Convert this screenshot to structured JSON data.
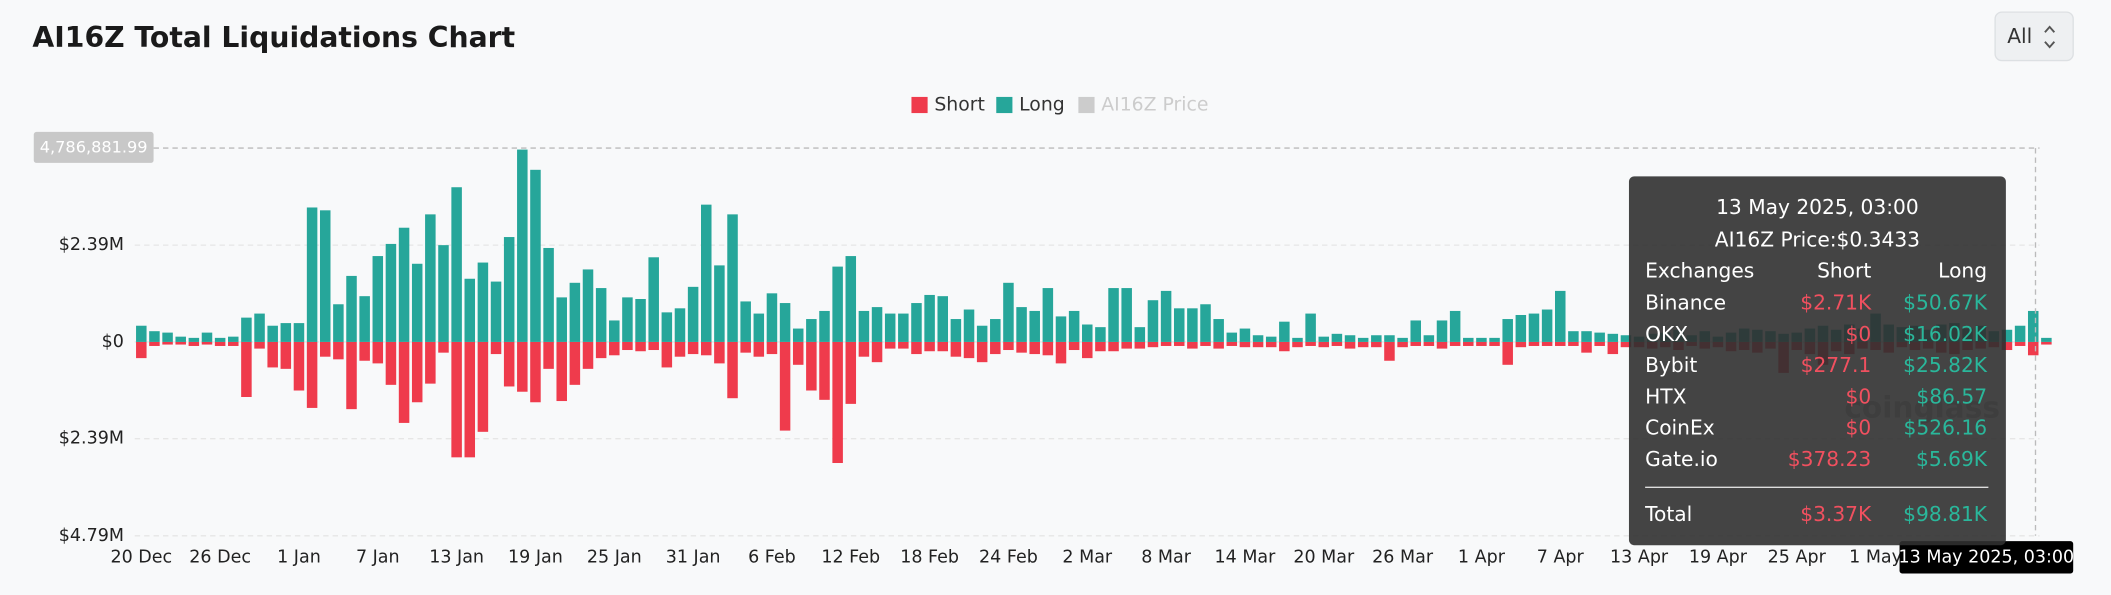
{
  "chart_data": {
    "type": "bar",
    "title": "AI16Z Total Liquidations Chart",
    "selector": "All",
    "watermark": "coinglass",
    "categories": [
      "20 Dec",
      null,
      null,
      null,
      null,
      null,
      "26 Dec",
      null,
      null,
      null,
      null,
      null,
      "1 Jan",
      null,
      null,
      null,
      null,
      null,
      "7 Jan",
      null,
      null,
      null,
      null,
      null,
      "13 Jan",
      null,
      null,
      null,
      null,
      null,
      "19 Jan",
      null,
      null,
      null,
      null,
      null,
      "25 Jan",
      null,
      null,
      null,
      null,
      null,
      "31 Jan",
      null,
      null,
      null,
      null,
      null,
      "6 Feb",
      null,
      null,
      null,
      null,
      null,
      "12 Feb",
      null,
      null,
      null,
      null,
      null,
      "18 Feb",
      null,
      null,
      null,
      null,
      null,
      "24 Feb",
      null,
      null,
      null,
      null,
      null,
      "2 Mar",
      null,
      null,
      null,
      null,
      null,
      "8 Mar",
      null,
      null,
      null,
      null,
      null,
      "14 Mar",
      null,
      null,
      null,
      null,
      null,
      "20 Mar",
      null,
      null,
      null,
      null,
      null,
      "26 Mar",
      null,
      null,
      null,
      null,
      null,
      "1 Apr",
      null,
      null,
      null,
      null,
      null,
      "7 Apr",
      null,
      null,
      null,
      null,
      null,
      "13 Apr",
      null,
      null,
      null,
      null,
      null,
      "19 Apr",
      null,
      null,
      null,
      null,
      null,
      "25 Apr",
      null,
      null,
      null,
      null,
      null,
      "1 May",
      null,
      null,
      null,
      null,
      null,
      null,
      null,
      null,
      null,
      null,
      null,
      null,
      null
    ],
    "series": [
      {
        "name": "Short",
        "color": "#ef3b4c",
        "values": [
          -400000,
          -100000,
          -65000,
          -65000,
          -100000,
          -65000,
          -100000,
          -100000,
          -1360000,
          -165000,
          -630000,
          -665000,
          -1200000,
          -1630000,
          -365000,
          -430000,
          -1660000,
          -465000,
          -530000,
          -1060000,
          -2000000,
          -1490000,
          -1030000,
          -265000,
          -2850000,
          -2850000,
          -2220000,
          -300000,
          -1100000,
          -1230000,
          -1490000,
          -665000,
          -1460000,
          -1060000,
          -665000,
          -400000,
          -330000,
          -200000,
          -230000,
          -200000,
          -630000,
          -365000,
          -300000,
          -330000,
          -530000,
          -1390000,
          -265000,
          -365000,
          -300000,
          -2190000,
          -565000,
          -1200000,
          -1430000,
          -2990000,
          -1530000,
          -365000,
          -500000,
          -165000,
          -165000,
          -300000,
          -230000,
          -230000,
          -365000,
          -400000,
          -500000,
          -300000,
          -200000,
          -265000,
          -300000,
          -330000,
          -530000,
          -200000,
          -400000,
          -230000,
          -230000,
          -165000,
          -165000,
          -130000,
          -100000,
          -100000,
          -165000,
          -100000,
          -165000,
          -100000,
          -130000,
          -130000,
          -130000,
          -230000,
          -130000,
          -100000,
          -130000,
          -100000,
          -165000,
          -130000,
          -130000,
          -465000,
          -130000,
          -100000,
          -100000,
          -165000,
          -100000,
          -100000,
          -100000,
          -100000,
          -565000,
          -130000,
          -100000,
          -100000,
          -100000,
          -100000,
          -265000,
          -100000,
          -300000,
          -130000,
          -130000,
          -165000,
          -130000,
          -200000,
          -100000,
          -165000,
          -130000,
          -230000,
          -200000,
          -265000,
          -165000,
          -765000,
          -200000,
          -300000,
          -565000,
          -230000,
          -300000,
          -165000,
          -200000,
          -265000,
          -130000,
          -200000,
          -165000,
          -265000,
          -300000,
          -200000,
          -165000,
          -130000,
          -200000,
          -100000,
          -330000,
          -65000
        ]
      },
      {
        "name": "Long",
        "color": "#26a69a",
        "values": [
          400000,
          265000,
          230000,
          130000,
          100000,
          230000,
          100000,
          130000,
          600000,
          700000,
          400000,
          465000,
          465000,
          3320000,
          3250000,
          930000,
          1630000,
          1130000,
          2120000,
          2420000,
          2820000,
          1930000,
          3150000,
          2390000,
          3820000,
          1560000,
          1960000,
          1490000,
          2590000,
          4750000,
          4250000,
          2320000,
          1100000,
          1460000,
          1790000,
          1330000,
          530000,
          1100000,
          1060000,
          2090000,
          730000,
          830000,
          1360000,
          3390000,
          1890000,
          3150000,
          1000000,
          700000,
          1200000,
          960000,
          330000,
          565000,
          765000,
          1860000,
          2120000,
          765000,
          860000,
          700000,
          700000,
          960000,
          1160000,
          1130000,
          565000,
          800000,
          400000,
          565000,
          1460000,
          860000,
          765000,
          1330000,
          630000,
          765000,
          430000,
          365000,
          1330000,
          1330000,
          365000,
          1030000,
          1260000,
          830000,
          830000,
          930000,
          565000,
          230000,
          330000,
          165000,
          130000,
          500000,
          100000,
          700000,
          130000,
          200000,
          165000,
          100000,
          165000,
          165000,
          100000,
          530000,
          165000,
          530000,
          765000,
          100000,
          100000,
          100000,
          565000,
          665000,
          700000,
          800000,
          1260000,
          265000,
          265000,
          230000,
          200000,
          165000,
          130000,
          200000,
          230000,
          300000,
          165000,
          265000,
          130000,
          230000,
          330000,
          300000,
          265000,
          200000,
          230000,
          330000,
          400000,
          300000,
          430000,
          330000,
          700000,
          430000,
          365000,
          400000,
          300000,
          430000,
          465000,
          330000,
          400000,
          265000,
          300000,
          400000,
          765000,
          100000
        ]
      }
    ],
    "price_legend": {
      "name": "AI16Z Price",
      "color": "#cccccc"
    },
    "ylim": [
      -4786881.99,
      4786881.99
    ],
    "yticks": [
      {
        "value": 2390000,
        "label": "$2.39M"
      },
      {
        "value": 0,
        "label": "$0"
      },
      {
        "value": -2390000,
        "label": "$2.39M"
      },
      {
        "value": -4786881.99,
        "label": "$4.79M"
      }
    ],
    "crosshair_y": {
      "value": 4786881.99,
      "label": "4,786,881.99"
    },
    "crosshair_x_label": "13 May 2025, 03:00",
    "grid": true,
    "tooltip": {
      "title": "13 May 2025, 03:00",
      "price": "AI16Z Price:$0.3433",
      "headers": [
        "Exchanges",
        "Short",
        "Long"
      ],
      "rows": [
        [
          "Binance",
          "$2.71K",
          "$50.67K"
        ],
        [
          "OKX",
          "$0",
          "$16.02K"
        ],
        [
          "Bybit",
          "$277.1",
          "$25.82K"
        ],
        [
          "HTX",
          "$0",
          "$86.57"
        ],
        [
          "CoinEx",
          "$0",
          "$526.16"
        ],
        [
          "Gate.io",
          "$378.23",
          "$5.69K"
        ]
      ],
      "total": [
        "Total",
        "$3.37K",
        "$98.81K"
      ]
    }
  }
}
